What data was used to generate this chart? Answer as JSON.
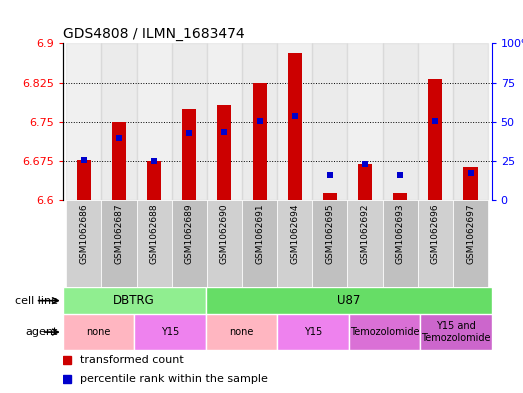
{
  "title": "GDS4808 / ILMN_1683474",
  "samples": [
    "GSM1062686",
    "GSM1062687",
    "GSM1062688",
    "GSM1062689",
    "GSM1062690",
    "GSM1062691",
    "GSM1062694",
    "GSM1062695",
    "GSM1062692",
    "GSM1062693",
    "GSM1062696",
    "GSM1062697"
  ],
  "red_values": [
    6.677,
    6.75,
    6.675,
    6.775,
    6.782,
    6.825,
    6.882,
    6.615,
    6.67,
    6.614,
    6.832,
    6.663
  ],
  "blue_values": [
    6.677,
    6.72,
    6.675,
    6.728,
    6.73,
    6.752,
    6.762,
    6.648,
    6.67,
    6.648,
    6.752,
    6.652
  ],
  "ymin": 6.6,
  "ymax": 6.9,
  "yticks_left": [
    6.6,
    6.675,
    6.75,
    6.825,
    6.9
  ],
  "yticks_right": [
    0,
    25,
    50,
    75,
    100
  ],
  "cell_line_groups": [
    {
      "label": "DBTRG",
      "start": 0,
      "end": 4,
      "color": "#90EE90"
    },
    {
      "label": "U87",
      "start": 4,
      "end": 12,
      "color": "#66DD66"
    }
  ],
  "agent_groups": [
    {
      "label": "none",
      "start": 0,
      "end": 2,
      "color": "#FFB6C1"
    },
    {
      "label": "Y15",
      "start": 2,
      "end": 4,
      "color": "#EE82EE"
    },
    {
      "label": "none",
      "start": 4,
      "end": 6,
      "color": "#FFB6C1"
    },
    {
      "label": "Y15",
      "start": 6,
      "end": 8,
      "color": "#EE82EE"
    },
    {
      "label": "Temozolomide",
      "start": 8,
      "end": 10,
      "color": "#DA70D6"
    },
    {
      "label": "Y15 and\nTemozolomide",
      "start": 10,
      "end": 12,
      "color": "#CC66CC"
    }
  ],
  "bar_color": "#CC0000",
  "blue_color": "#0000CC",
  "legend_red": "transformed count",
  "legend_blue": "percentile rank within the sample",
  "sample_bg_even": "#D0D0D0",
  "sample_bg_odd": "#C0C0C0"
}
